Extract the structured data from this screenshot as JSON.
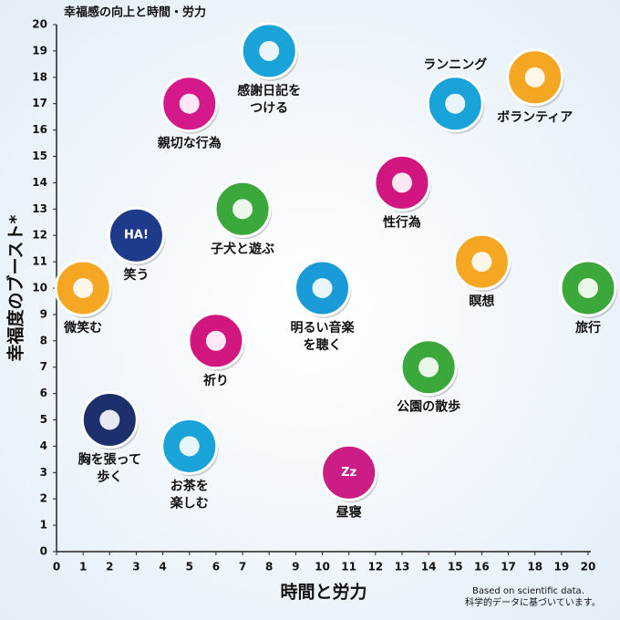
{
  "chart_data": {
    "type": "scatter",
    "title": "幸福感の向上と時間・労力",
    "x_label": "時間と労力",
    "y_label": "幸福度のブースト*",
    "footnote": [
      "Based on scientific data.",
      "科学的データに基づいています。"
    ],
    "xlim": [
      0,
      20
    ],
    "ylim": [
      0,
      20
    ],
    "xticks": [
      0,
      1,
      2,
      3,
      4,
      5,
      6,
      7,
      8,
      9,
      10,
      11,
      12,
      13,
      14,
      15,
      16,
      17,
      18,
      19,
      20
    ],
    "yticks": [
      0,
      1,
      2,
      3,
      4,
      5,
      6,
      7,
      8,
      9,
      10,
      11,
      12,
      13,
      14,
      15,
      16,
      17,
      18,
      19,
      20
    ],
    "points": [
      {
        "label": [
          "感謝日記を",
          "つける"
        ],
        "x": 8,
        "y": 19,
        "color": "#1aa3d9"
      },
      {
        "label": [
          "親切な行為"
        ],
        "x": 5,
        "y": 17,
        "color": "#d6198a"
      },
      {
        "label": [
          "子犬と遊ぶ"
        ],
        "x": 7,
        "y": 13,
        "color": "#3aa83a"
      },
      {
        "label": [
          "笑う"
        ],
        "x": 3,
        "y": 12,
        "color": "#1e3a8a",
        "icon_text": "HA!"
      },
      {
        "label": [
          "微笑む"
        ],
        "x": 1,
        "y": 10,
        "color": "#f5a623"
      },
      {
        "label": [
          "祈り"
        ],
        "x": 6,
        "y": 8,
        "color": "#d1177f"
      },
      {
        "label": [
          "胸を張って",
          "歩く"
        ],
        "x": 2,
        "y": 5,
        "color": "#1e2f6e"
      },
      {
        "label": [
          "お茶を",
          "楽しむ"
        ],
        "x": 5,
        "y": 4,
        "color": "#1aa3d9"
      },
      {
        "label": [
          "昼寝"
        ],
        "x": 11,
        "y": 3,
        "color": "#cc1c86",
        "icon_text": "Zz"
      },
      {
        "label": [
          "明るい音楽",
          "を聴く"
        ],
        "x": 10,
        "y": 10,
        "color": "#1a9ad6"
      },
      {
        "label": [
          "性行為"
        ],
        "x": 13,
        "y": 14,
        "color": "#d1177f"
      },
      {
        "label": [
          "ランニング"
        ],
        "x": 15,
        "y": 17,
        "color": "#1aa3d9"
      },
      {
        "label": [
          "ボランティア"
        ],
        "x": 18,
        "y": 18,
        "color": "#f5a623"
      },
      {
        "label": [
          "瞑想"
        ],
        "x": 16,
        "y": 11,
        "color": "#f5a623"
      },
      {
        "label": [
          "旅行"
        ],
        "x": 20,
        "y": 10,
        "color": "#3aa83a"
      },
      {
        "label": [
          "公園の散歩"
        ],
        "x": 14,
        "y": 7,
        "color": "#3aa83a"
      }
    ]
  }
}
